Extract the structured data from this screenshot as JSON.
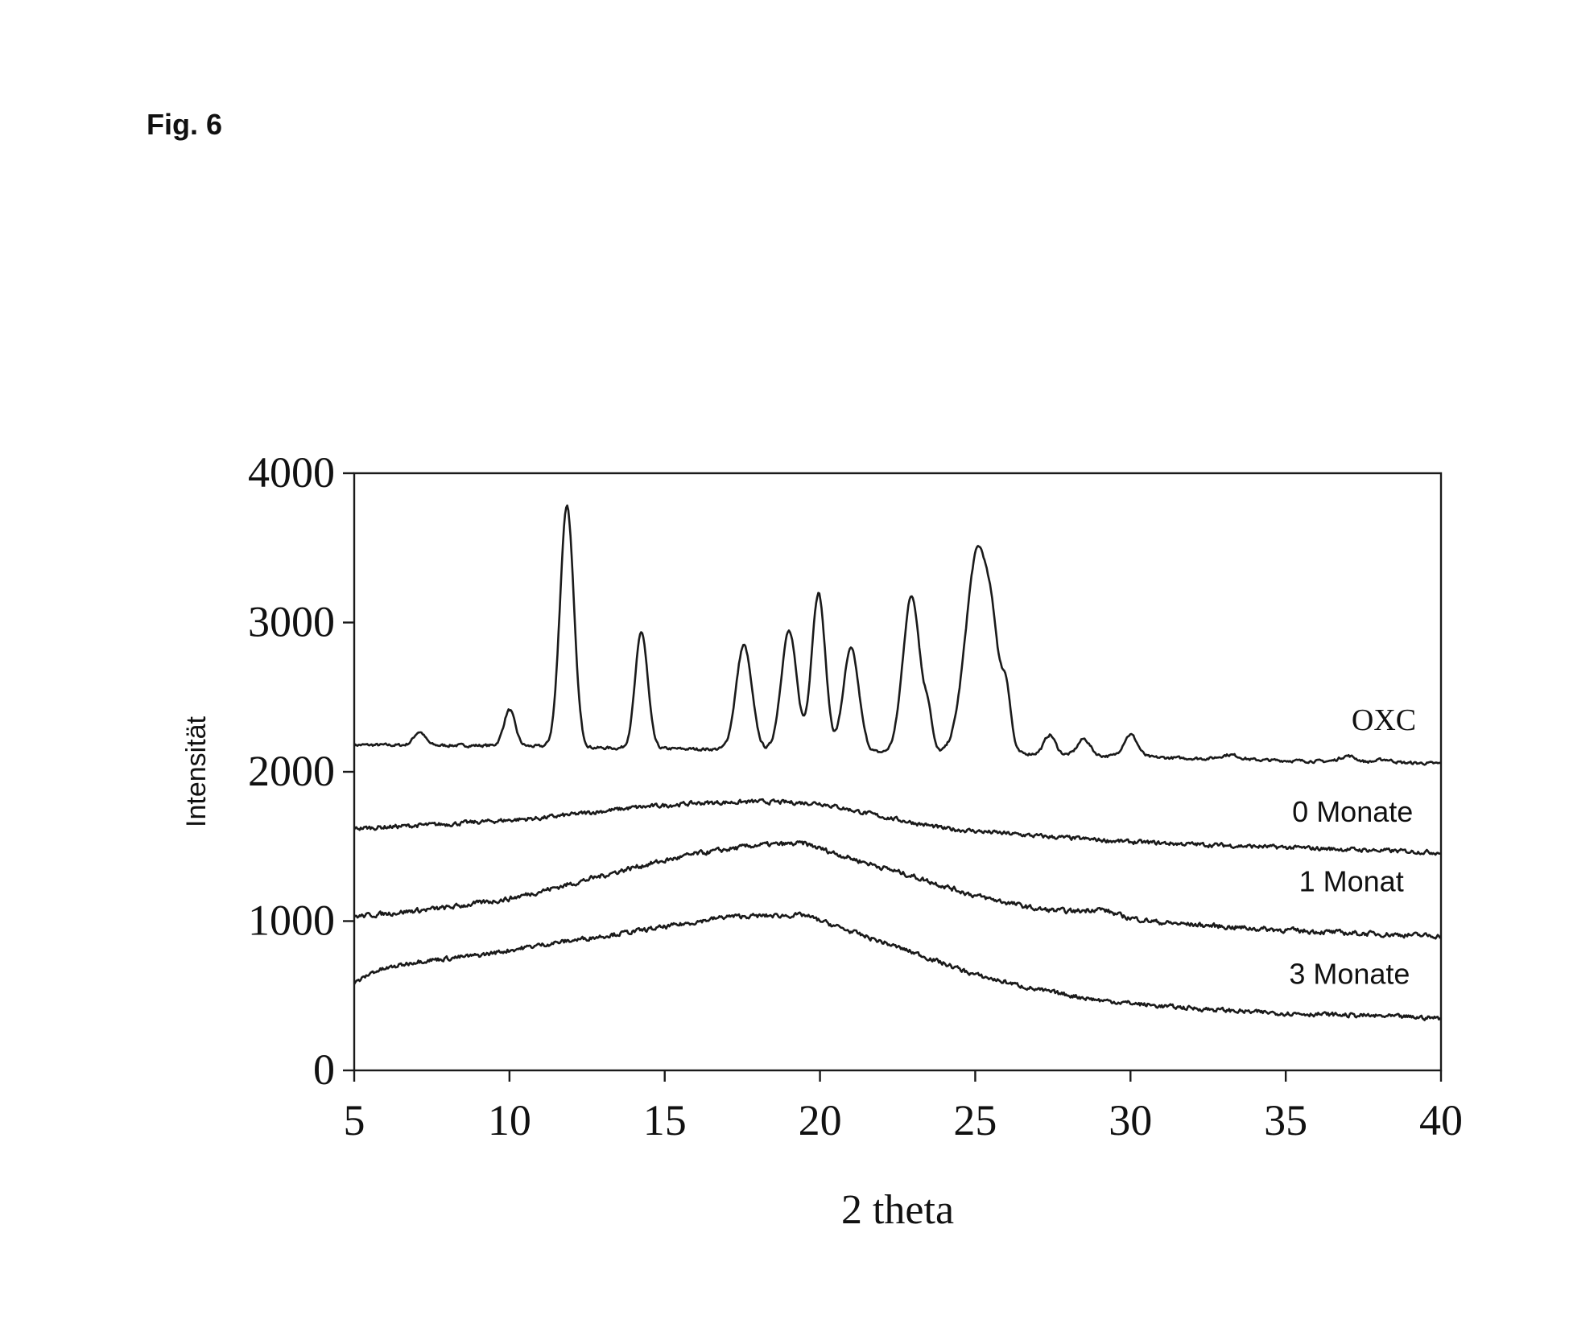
{
  "figure_label": "Fig. 6",
  "chart_data": {
    "type": "line",
    "title": "",
    "xlabel": "2 theta",
    "ylabel": "Intensität",
    "xlim": [
      5,
      40
    ],
    "ylim": [
      0,
      4000
    ],
    "xticks": [
      5,
      10,
      15,
      20,
      25,
      30,
      35,
      40
    ],
    "yticks": [
      0,
      1000,
      2000,
      3000,
      4000
    ],
    "grid": false,
    "legend": "inline labels right",
    "series": [
      {
        "name": "OXC",
        "baseline": [
          [
            5,
            2180
          ],
          [
            10,
            2175
          ],
          [
            13,
            2160
          ],
          [
            17,
            2150
          ],
          [
            22,
            2130
          ],
          [
            27,
            2120
          ],
          [
            30,
            2100
          ],
          [
            35,
            2075
          ],
          [
            40,
            2055
          ]
        ],
        "peaks": [
          [
            7.1,
            90,
            0.18
          ],
          [
            10.0,
            240,
            0.18
          ],
          [
            11.85,
            1620,
            0.22
          ],
          [
            14.25,
            780,
            0.2
          ],
          [
            17.55,
            700,
            0.25
          ],
          [
            19.0,
            800,
            0.25
          ],
          [
            19.95,
            1060,
            0.22
          ],
          [
            21.0,
            690,
            0.25
          ],
          [
            22.95,
            1050,
            0.28
          ],
          [
            23.5,
            200,
            0.12
          ],
          [
            25.1,
            1380,
            0.4
          ],
          [
            25.6,
            300,
            0.18
          ],
          [
            26.0,
            380,
            0.15
          ],
          [
            27.4,
            130,
            0.18
          ],
          [
            28.5,
            110,
            0.2
          ],
          [
            30.0,
            150,
            0.22
          ],
          [
            33.2,
            30,
            0.3
          ],
          [
            37.0,
            40,
            0.25
          ],
          [
            38.2,
            20,
            0.25
          ]
        ],
        "noise": 15
      },
      {
        "name": "0 Monate",
        "baseline": [
          [
            5,
            1620
          ],
          [
            8,
            1650
          ],
          [
            11,
            1690
          ],
          [
            14,
            1760
          ],
          [
            16,
            1790
          ],
          [
            18,
            1800
          ],
          [
            20,
            1790
          ],
          [
            22,
            1700
          ],
          [
            24,
            1620
          ],
          [
            27,
            1570
          ],
          [
            30,
            1530
          ],
          [
            34,
            1500
          ],
          [
            37,
            1480
          ],
          [
            40,
            1460
          ]
        ],
        "peaks": [],
        "noise": 22
      },
      {
        "name": "1 Monat",
        "baseline": [
          [
            5,
            1030
          ],
          [
            8,
            1090
          ],
          [
            10,
            1150
          ],
          [
            12,
            1250
          ],
          [
            14,
            1360
          ],
          [
            16,
            1450
          ],
          [
            18,
            1510
          ],
          [
            19.5,
            1520
          ],
          [
            21,
            1420
          ],
          [
            23,
            1300
          ],
          [
            25,
            1170
          ],
          [
            27,
            1080
          ],
          [
            29,
            1050
          ],
          [
            31,
            990
          ],
          [
            34,
            950
          ],
          [
            37,
            920
          ],
          [
            40,
            900
          ]
        ],
        "peaks": [
          [
            29.0,
            30,
            0.4
          ]
        ],
        "noise": 25
      },
      {
        "name": "3 Monate",
        "baseline": [
          [
            5,
            580
          ],
          [
            5.6,
            660
          ],
          [
            7,
            730
          ],
          [
            9,
            770
          ],
          [
            11,
            840
          ],
          [
            13,
            900
          ],
          [
            15,
            960
          ],
          [
            17,
            1030
          ],
          [
            19.5,
            1040
          ],
          [
            21,
            930
          ],
          [
            23,
            790
          ],
          [
            25,
            640
          ],
          [
            27,
            540
          ],
          [
            29,
            470
          ],
          [
            31,
            430
          ],
          [
            34,
            390
          ],
          [
            37,
            370
          ],
          [
            40,
            350
          ]
        ],
        "peaks": [],
        "noise": 23
      }
    ]
  }
}
